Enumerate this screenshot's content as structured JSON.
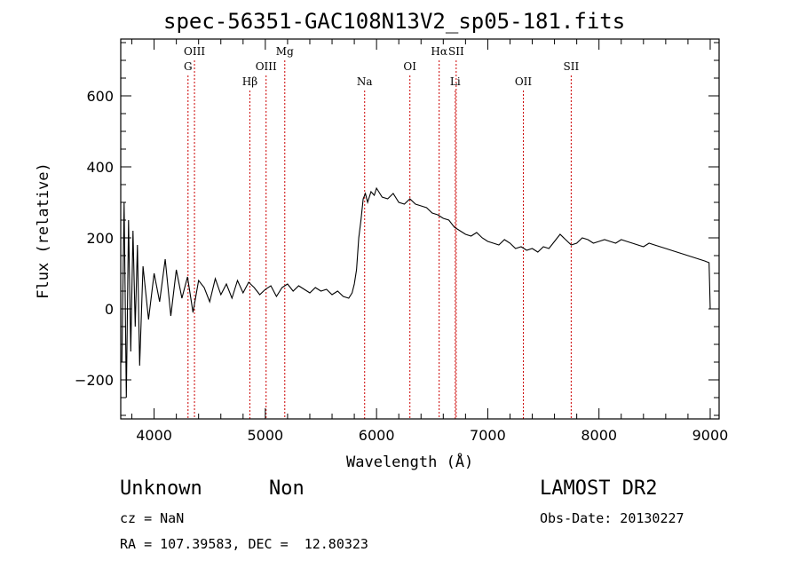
{
  "chart_data": {
    "type": "line",
    "title": "spec-56351-GAC108N13V2_sp05-181.fits",
    "xlabel": "Wavelength (Å)",
    "ylabel": "Flux (relative)",
    "xlim": [
      3700,
      9080
    ],
    "ylim": [
      -310,
      760
    ],
    "xticks": [
      4000,
      5000,
      6000,
      7000,
      8000,
      9000
    ],
    "xtick_labels": [
      "4000",
      "5000",
      "6000",
      "7000",
      "8000",
      "9000"
    ],
    "yticks": [
      -200,
      0,
      200,
      400,
      600
    ],
    "ytick_labels": [
      "−200",
      "0",
      "200",
      "400",
      "600"
    ],
    "grid": false,
    "series": [
      {
        "x": [
          3710,
          3730,
          3750,
          3770,
          3790,
          3810,
          3830,
          3850,
          3870,
          3900,
          3950,
          4000,
          4050,
          4100,
          4150,
          4200,
          4250,
          4300,
          4350,
          4400,
          4450,
          4500,
          4550,
          4600,
          4650,
          4700,
          4750,
          4800,
          4850,
          4900,
          4950,
          5000,
          5050,
          5100,
          5150,
          5200,
          5250,
          5300,
          5350,
          5400,
          5450,
          5500,
          5550,
          5600,
          5650,
          5700,
          5750,
          5780,
          5800,
          5820,
          5840,
          5860,
          5880,
          5900,
          5920,
          5950,
          5980,
          6000,
          6050,
          6100,
          6150,
          6200,
          6250,
          6300,
          6350,
          6400,
          6450,
          6500,
          6550,
          6600,
          6650,
          6700,
          6750,
          6800,
          6850,
          6900,
          6950,
          7000,
          7050,
          7100,
          7150,
          7200,
          7250,
          7300,
          7350,
          7400,
          7450,
          7500,
          7550,
          7600,
          7650,
          7700,
          7750,
          7800,
          7850,
          7900,
          7950,
          8000,
          8050,
          8100,
          8150,
          8200,
          8250,
          8300,
          8350,
          8400,
          8450,
          8500,
          8550,
          8600,
          8650,
          8700,
          8750,
          8800,
          8850,
          8900,
          8950,
          8990,
          9000,
          9010
        ],
        "y": [
          -150,
          300,
          -250,
          250,
          -120,
          220,
          -50,
          180,
          -160,
          120,
          -30,
          100,
          20,
          140,
          -20,
          110,
          30,
          90,
          -10,
          80,
          60,
          20,
          85,
          40,
          70,
          30,
          80,
          45,
          75,
          60,
          40,
          55,
          65,
          35,
          60,
          70,
          50,
          65,
          55,
          45,
          60,
          50,
          55,
          40,
          50,
          35,
          30,
          45,
          70,
          110,
          200,
          250,
          310,
          325,
          300,
          330,
          320,
          340,
          315,
          310,
          325,
          300,
          295,
          310,
          295,
          290,
          285,
          270,
          265,
          255,
          250,
          230,
          220,
          210,
          205,
          215,
          200,
          190,
          185,
          180,
          195,
          185,
          170,
          175,
          165,
          170,
          160,
          175,
          170,
          190,
          210,
          195,
          180,
          185,
          200,
          195,
          185,
          190,
          195,
          190,
          185,
          195,
          190,
          185,
          180,
          175,
          185,
          180,
          175,
          170,
          165,
          160,
          155,
          150,
          145,
          140,
          135,
          130,
          0,
          0
        ]
      }
    ],
    "line_markers": [
      {
        "name": "G",
        "x": 4305,
        "row": 1
      },
      {
        "name": "OIII",
        "x": 4363,
        "row": 0
      },
      {
        "name": "Hβ",
        "x": 4861,
        "row": 2
      },
      {
        "name": "OIII",
        "x": 5007,
        "row": 1
      },
      {
        "name": "Mg",
        "x": 5175,
        "row": 0
      },
      {
        "name": "Na",
        "x": 5893,
        "row": 2
      },
      {
        "name": "OI",
        "x": 6300,
        "row": 1
      },
      {
        "name": "Hα",
        "x": 6563,
        "row": 0
      },
      {
        "name": "SII",
        "x": 6716,
        "row": 0
      },
      {
        "name": "Li",
        "x": 6708,
        "row": 2
      },
      {
        "name": "OII",
        "x": 7320,
        "row": 2
      },
      {
        "name": "SII",
        "x": 7750,
        "row": 1
      }
    ],
    "line_marker_color": "#cc0000"
  },
  "info": {
    "classification": "Unknown",
    "subclass": "Non",
    "survey": "LAMOST DR2",
    "cz": "cz = NaN",
    "obs_date": "Obs-Date: 20130227",
    "radec": "RA = 107.39583, DEC =  12.80323"
  }
}
